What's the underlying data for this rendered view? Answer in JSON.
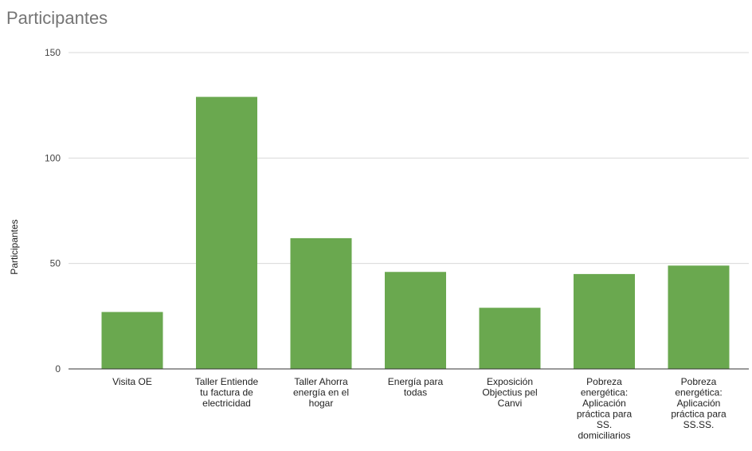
{
  "chart_data": {
    "type": "bar",
    "title": "Participantes",
    "ylabel": "Participantes",
    "xlabel": "",
    "ylim": [
      0,
      150
    ],
    "yticks": [
      0,
      50,
      100,
      150
    ],
    "grid": true,
    "legend": "none",
    "bar_color": "#6aa84f",
    "categories": [
      [
        "Visita OE"
      ],
      [
        "Taller Entiende",
        "tu factura de",
        "electricidad"
      ],
      [
        "Taller Ahorra",
        "energía en el",
        "hogar"
      ],
      [
        "Energía para",
        "todas"
      ],
      [
        "Exposición",
        "Objectius pel",
        "Canvi"
      ],
      [
        "Pobreza",
        "energética:",
        "Aplicación",
        "práctica para",
        "SS.",
        "domiciliarios"
      ],
      [
        "Pobreza",
        "energética:",
        "Aplicación",
        "práctica para",
        "SS.SS."
      ]
    ],
    "values": [
      27,
      129,
      62,
      46,
      29,
      45,
      49
    ]
  }
}
